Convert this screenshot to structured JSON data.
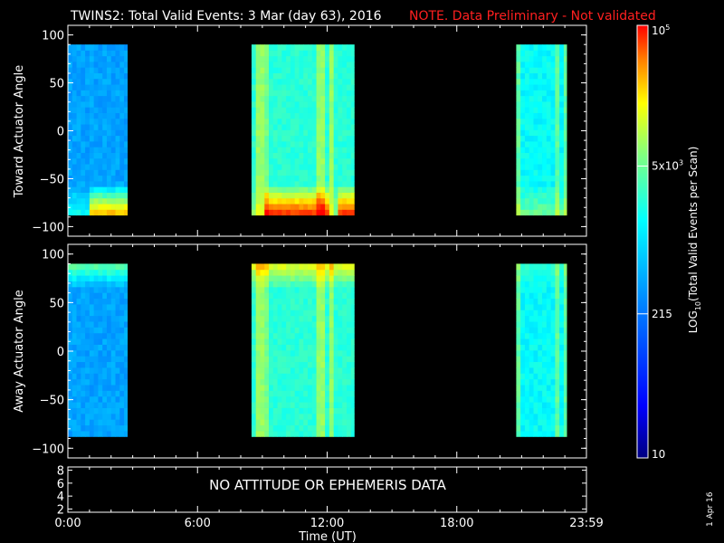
{
  "header": {
    "title": "TWINS2: Total Valid Events:  3 Mar (day  63), 2016",
    "note": "NOTE. Data Preliminary - Not validated",
    "note_color": "#ff2020"
  },
  "side_date": "1 Apr 16",
  "chart_data": [
    {
      "type": "heatmap",
      "ylabel": "Toward Actuator Angle",
      "ylim": [
        -110,
        110
      ],
      "y_ticks": [
        "100",
        "50",
        "0",
        "-50",
        "-100"
      ],
      "y_range": [
        -88,
        90
      ],
      "data_blocks": [
        {
          "start": "0:00",
          "end": "2:45",
          "description": "low-moderate counts, high counts near -80 to -88 deg after 1:30"
        },
        {
          "start": "8:30",
          "end": "13:15",
          "description": "moderate counts with bright vertical streaks near 9:00, 11:00 and 12:00; high counts near -85 deg"
        },
        {
          "start": "20:45",
          "end": "23:05",
          "description": "moderate counts with vertical streaks"
        }
      ]
    },
    {
      "type": "heatmap",
      "ylabel": "Away Actuator Angle",
      "ylim": [
        -110,
        110
      ],
      "y_ticks": [
        "100",
        "50",
        "0",
        "-50",
        "-100"
      ],
      "y_range": [
        -88,
        90
      ],
      "data_blocks": [
        {
          "start": "0:00",
          "end": "2:45",
          "description": "moderate counts, higher near +90 deg"
        },
        {
          "start": "8:30",
          "end": "13:15",
          "description": "moderate-high counts, bright near +90 deg, streaks near 9:00 and 12:00"
        },
        {
          "start": "20:45",
          "end": "23:05",
          "description": "moderate counts with vertical streaks"
        }
      ]
    },
    {
      "type": "line",
      "ylim": [
        1.5,
        8.5
      ],
      "y_ticks": [
        "8",
        "6",
        "4",
        "2"
      ],
      "message": "NO ATTITUDE OR EPHEMERIS DATA"
    }
  ],
  "x_axis": {
    "ticks": [
      "0:00",
      "6:00",
      "12:00",
      "18:00",
      "23:59"
    ],
    "label": "Time (UT)",
    "range": [
      0,
      24
    ]
  },
  "colorbar": {
    "label": "LOG10(Total Valid Events per Scan)",
    "label_main": "LOG",
    "label_sub": "10",
    "label_rest": "(Total Valid Events per Scan)",
    "ticks": [
      {
        "value": 100000,
        "text": "10",
        "sup": "5"
      },
      {
        "value": 5000,
        "text": "5x10",
        "sup": "3"
      },
      {
        "value": 215,
        "text": "215",
        "sup": ""
      },
      {
        "value": 10,
        "text": "10",
        "sup": ""
      }
    ],
    "range": [
      10,
      100000
    ],
    "colors": [
      "#000080",
      "#0000ff",
      "#0080ff",
      "#00ffff",
      "#80ff80",
      "#ffff00",
      "#ff8000",
      "#ff0000"
    ]
  }
}
